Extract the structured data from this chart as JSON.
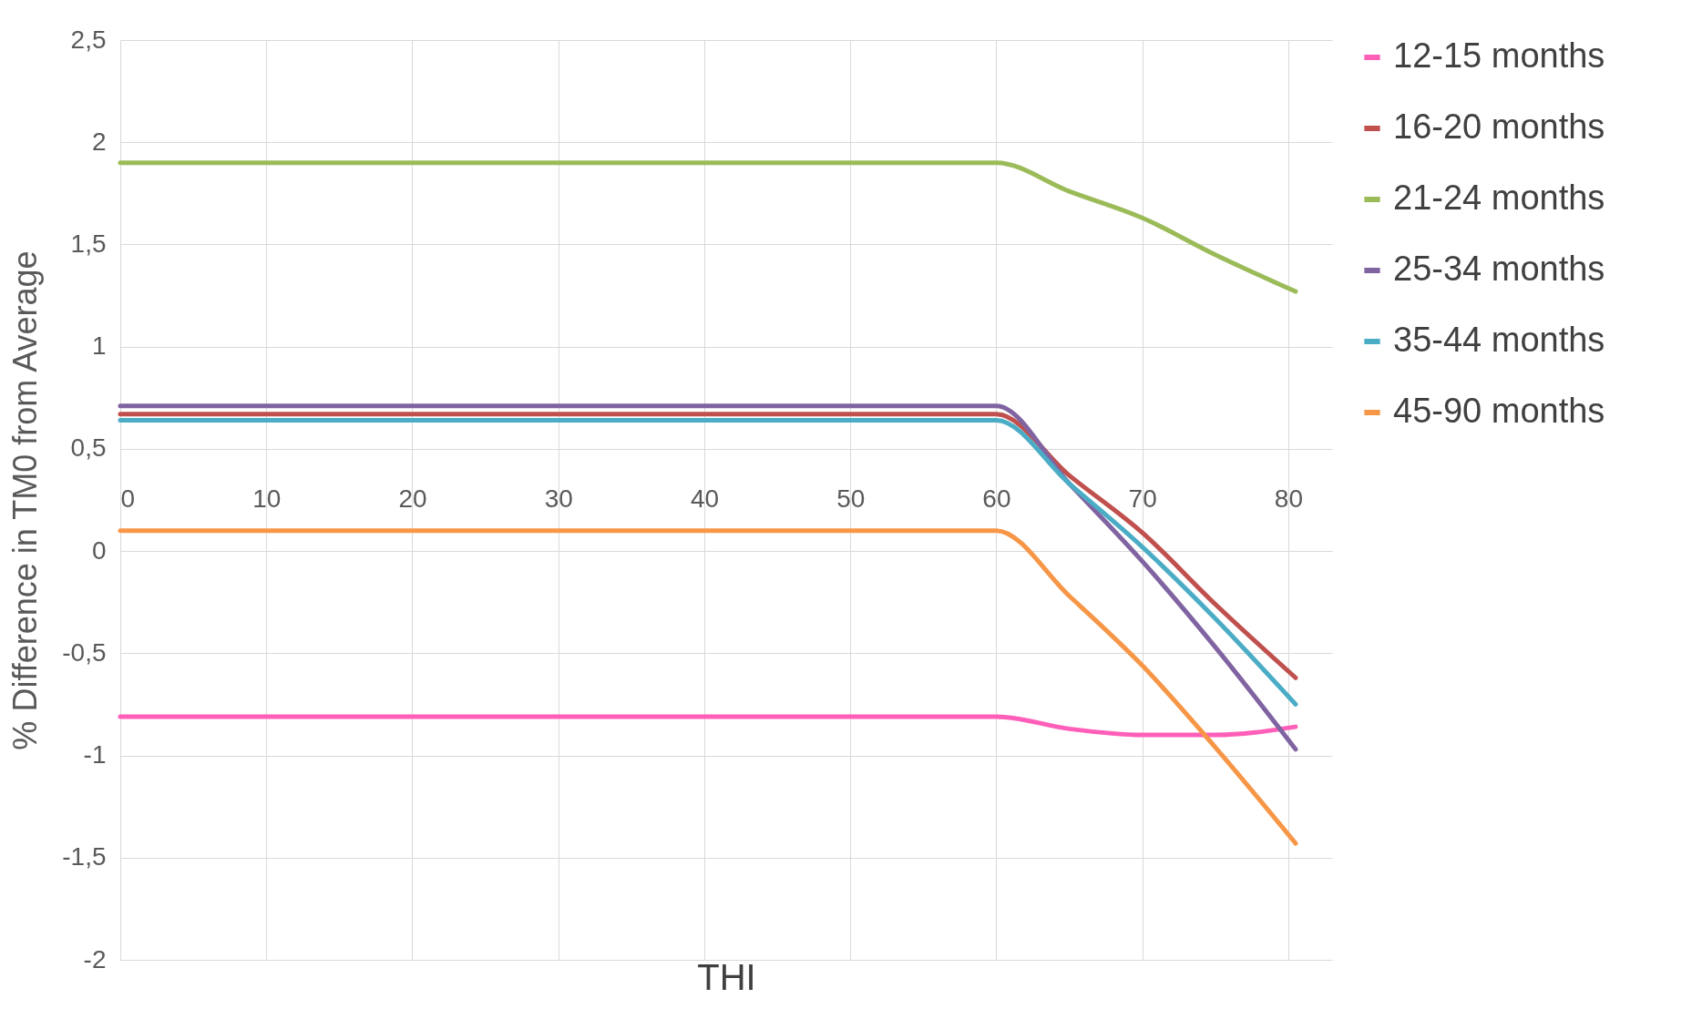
{
  "chart_data": {
    "type": "line",
    "xlabel": "THI",
    "ylabel": "% Difference in TM0 from Average",
    "x": [
      0,
      60,
      65,
      70,
      75,
      80.5
    ],
    "series": [
      {
        "name": "12-15 months",
        "color": "#ff5fb8",
        "values": [
          -0.81,
          -0.81,
          -0.87,
          -0.9,
          -0.9,
          -0.86
        ]
      },
      {
        "name": "16-20 months",
        "color": "#c0504d",
        "values": [
          0.67,
          0.67,
          0.37,
          0.09,
          -0.26,
          -0.62
        ]
      },
      {
        "name": "21-24 months",
        "color": "#9bbb59",
        "values": [
          1.9,
          1.9,
          1.76,
          1.63,
          1.45,
          1.27
        ]
      },
      {
        "name": "25-34 months",
        "color": "#8064a2",
        "values": [
          0.71,
          0.71,
          0.33,
          -0.05,
          -0.47,
          -0.97
        ]
      },
      {
        "name": "35-44 months",
        "color": "#4bacc6",
        "values": [
          0.64,
          0.64,
          0.33,
          0.02,
          -0.33,
          -0.75
        ]
      },
      {
        "name": "45-90 months",
        "color": "#f79646",
        "values": [
          0.1,
          0.1,
          -0.22,
          -0.56,
          -0.96,
          -1.43
        ]
      }
    ],
    "xlim": [
      0,
      83
    ],
    "xticks": [
      0,
      10,
      20,
      30,
      40,
      50,
      60,
      70,
      80
    ],
    "ylim": [
      -2,
      2.5
    ],
    "yticks": [
      {
        "value": -2,
        "label": "-2"
      },
      {
        "value": -1.5,
        "label": "-1,5"
      },
      {
        "value": -1,
        "label": "-1"
      },
      {
        "value": -0.5,
        "label": "-0,5"
      },
      {
        "value": 0,
        "label": "0"
      },
      {
        "value": 0.5,
        "label": "0,5"
      },
      {
        "value": 1,
        "label": "1"
      },
      {
        "value": 1.5,
        "label": "1,5"
      },
      {
        "value": 2,
        "label": "2"
      },
      {
        "value": 2.5,
        "label": "2,5"
      }
    ],
    "grid": true,
    "legend": "right",
    "marker": "none",
    "line_style": "solid"
  }
}
